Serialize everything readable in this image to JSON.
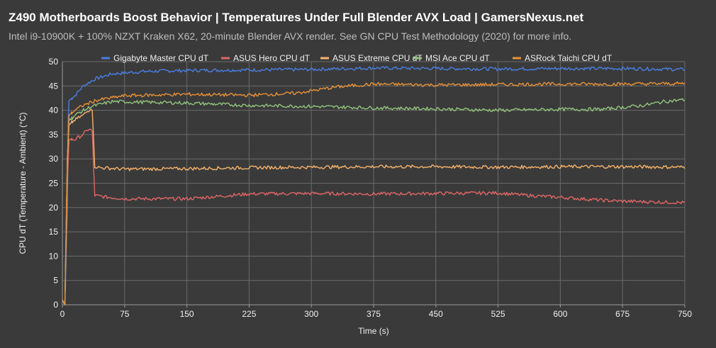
{
  "chart_data": {
    "type": "line",
    "title": "Z490 Motherboards Boost Behavior | Temperatures Under Full Blender AVX Load | GamersNexus.net",
    "subtitle": "Intel i9-10900K + 100% NZXT Kraken X62, 20-minute Blender AVX render. See GN CPU Test Methodology (2020) for more info.",
    "xlabel": "Time (s)",
    "ylabel": "CPU dT (Temperature - Ambient) (°C)",
    "xlim": [
      0,
      750
    ],
    "ylim": [
      0,
      50
    ],
    "xticks": [
      0,
      75,
      150,
      225,
      300,
      375,
      450,
      525,
      600,
      675,
      750
    ],
    "yticks": [
      0,
      5,
      10,
      15,
      20,
      25,
      30,
      35,
      40,
      45,
      50
    ],
    "grid": true,
    "legend_position": "top",
    "series": [
      {
        "name": "Gigabyte Master CPU dT",
        "color": "#4a7fe0",
        "points": [
          [
            0,
            1
          ],
          [
            3,
            0
          ],
          [
            6,
            20
          ],
          [
            7,
            38
          ],
          [
            8,
            42
          ],
          [
            15,
            43
          ],
          [
            25,
            45
          ],
          [
            40,
            46.5
          ],
          [
            60,
            47.5
          ],
          [
            100,
            48
          ],
          [
            150,
            48.2
          ],
          [
            225,
            48.3
          ],
          [
            300,
            48.4
          ],
          [
            375,
            48.7
          ],
          [
            450,
            48.6
          ],
          [
            525,
            48.5
          ],
          [
            600,
            48.6
          ],
          [
            675,
            48.6
          ],
          [
            750,
            48.4
          ]
        ]
      },
      {
        "name": "ASUS Hero CPU dT",
        "color": "#e06666",
        "points": [
          [
            0,
            1
          ],
          [
            3,
            0
          ],
          [
            6,
            25
          ],
          [
            8,
            34
          ],
          [
            15,
            34
          ],
          [
            25,
            35
          ],
          [
            30,
            36
          ],
          [
            35,
            36
          ],
          [
            37,
            35
          ],
          [
            38,
            22.5
          ],
          [
            50,
            22.2
          ],
          [
            75,
            21.8
          ],
          [
            150,
            21.8
          ],
          [
            225,
            22.8
          ],
          [
            300,
            22.9
          ],
          [
            375,
            22.8
          ],
          [
            450,
            22.9
          ],
          [
            525,
            23
          ],
          [
            560,
            22.5
          ],
          [
            600,
            22.1
          ],
          [
            650,
            21.5
          ],
          [
            675,
            21.3
          ],
          [
            750,
            21
          ]
        ]
      },
      {
        "name": "ASUS Extreme CPU dT",
        "color": "#f6b26b",
        "points": [
          [
            0,
            1
          ],
          [
            3,
            0
          ],
          [
            6,
            30
          ],
          [
            8,
            37
          ],
          [
            15,
            38
          ],
          [
            25,
            39
          ],
          [
            35,
            40.5
          ],
          [
            37,
            40
          ],
          [
            38,
            28.5
          ],
          [
            45,
            28.2
          ],
          [
            75,
            27.9
          ],
          [
            150,
            28
          ],
          [
            225,
            28.2
          ],
          [
            300,
            28.3
          ],
          [
            375,
            28.4
          ],
          [
            450,
            28.4
          ],
          [
            525,
            28.3
          ],
          [
            600,
            28.4
          ],
          [
            675,
            28.4
          ],
          [
            750,
            28.3
          ]
        ]
      },
      {
        "name": "MSI Ace CPU dT",
        "color": "#93c47d",
        "points": [
          [
            0,
            1
          ],
          [
            3,
            0
          ],
          [
            6,
            30
          ],
          [
            8,
            38
          ],
          [
            20,
            39.5
          ],
          [
            35,
            40.8
          ],
          [
            60,
            41.8
          ],
          [
            150,
            41.5
          ],
          [
            225,
            41
          ],
          [
            300,
            40.8
          ],
          [
            375,
            40.5
          ],
          [
            450,
            40.3
          ],
          [
            525,
            40
          ],
          [
            600,
            40.2
          ],
          [
            650,
            40.2
          ],
          [
            700,
            41
          ],
          [
            725,
            41.8
          ],
          [
            750,
            42.2
          ]
        ]
      },
      {
        "name": "ASRock Taichi CPU dT",
        "color": "#e69138",
        "points": [
          [
            0,
            1
          ],
          [
            3,
            0
          ],
          [
            6,
            30
          ],
          [
            8,
            39
          ],
          [
            15,
            40
          ],
          [
            25,
            41
          ],
          [
            40,
            42
          ],
          [
            75,
            43
          ],
          [
            150,
            43.3
          ],
          [
            225,
            43.1
          ],
          [
            280,
            43.5
          ],
          [
            300,
            44
          ],
          [
            330,
            44.8
          ],
          [
            375,
            45.4
          ],
          [
            450,
            45.2
          ],
          [
            525,
            45.3
          ],
          [
            600,
            45.4
          ],
          [
            675,
            45.4
          ],
          [
            750,
            45.5
          ]
        ]
      }
    ]
  }
}
